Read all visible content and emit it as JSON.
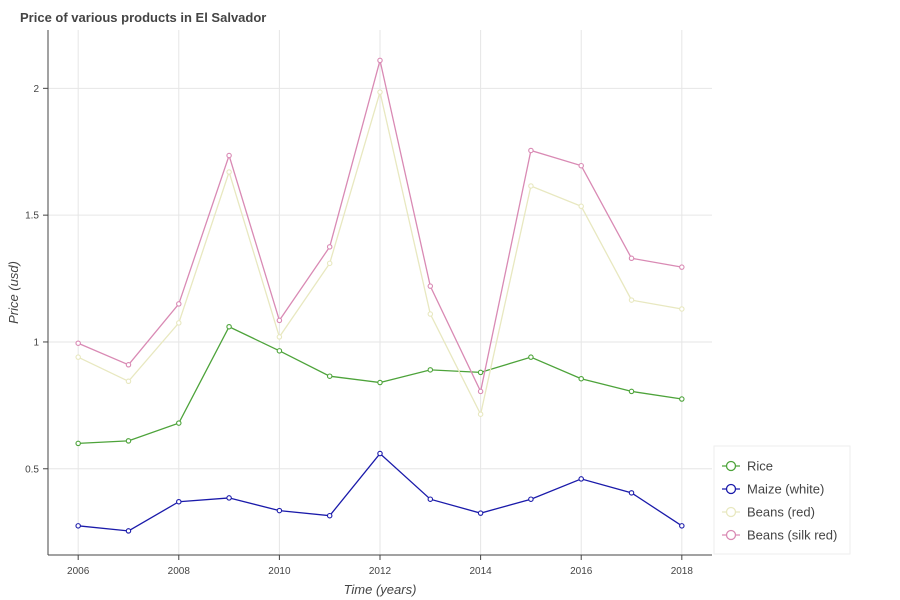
{
  "chart_data": {
    "type": "line",
    "title": "Price of various products in El Salvador",
    "xlabel": "Time (years)",
    "ylabel": "Price (usd)",
    "xlim": [
      2005.4,
      2018.6
    ],
    "ylim": [
      0.16,
      2.23
    ],
    "xticks": [
      2006,
      2008,
      2010,
      2012,
      2014,
      2016,
      2018
    ],
    "yticks": [
      0.5,
      1,
      1.5,
      2
    ],
    "ytick_labels": [
      "0.5",
      "1",
      "1.5",
      "2"
    ],
    "grid": true,
    "legend_position": "bottom-right",
    "x": [
      2006,
      2007,
      2008,
      2009,
      2010,
      2011,
      2012,
      2013,
      2014,
      2015,
      2016,
      2017,
      2018
    ],
    "series": [
      {
        "name": "Rice",
        "color": "#4da33a",
        "values": [
          0.6,
          0.61,
          0.68,
          1.06,
          0.965,
          0.865,
          0.84,
          0.89,
          0.88,
          0.94,
          0.855,
          0.805,
          0.775
        ]
      },
      {
        "name": "Maize (white)",
        "color": "#1a1aaa",
        "values": [
          0.275,
          0.255,
          0.37,
          0.385,
          0.335,
          0.315,
          0.56,
          0.38,
          0.325,
          0.38,
          0.46,
          0.405,
          0.275
        ]
      },
      {
        "name": "Beans (red)",
        "color": "#e8e8c0",
        "values": [
          0.94,
          0.845,
          1.075,
          1.67,
          1.02,
          1.31,
          1.985,
          1.11,
          0.715,
          1.615,
          1.535,
          1.165,
          1.13
        ]
      },
      {
        "name": "Beans (silk red)",
        "color": "#d98ab4",
        "values": [
          0.995,
          0.91,
          1.15,
          1.735,
          1.085,
          1.375,
          2.11,
          1.22,
          0.805,
          1.755,
          1.695,
          1.33,
          1.295
        ]
      }
    ]
  }
}
